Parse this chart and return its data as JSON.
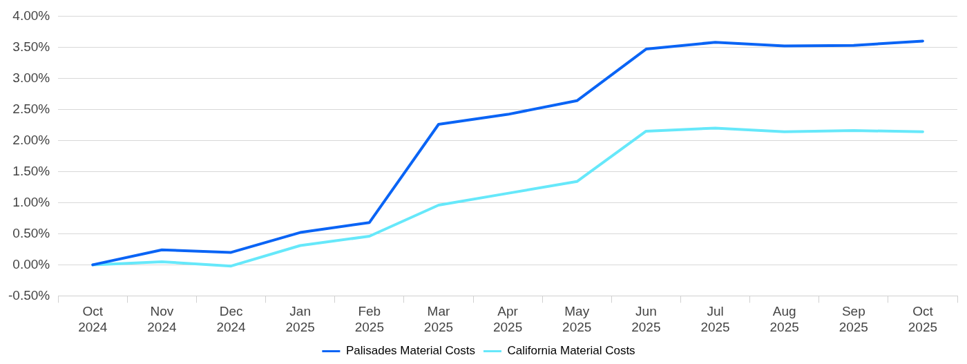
{
  "chart_data": {
    "type": "line",
    "categories": [
      "Oct 2024",
      "Nov 2024",
      "Dec 2024",
      "Jan 2025",
      "Feb 2025",
      "Mar 2025",
      "Apr 2025",
      "May 2025",
      "Jun 2025",
      "Jul 2025",
      "Aug 2025",
      "Sep 2025",
      "Oct 2025"
    ],
    "series": [
      {
        "name": "Palisades Material Costs",
        "color": "#0a64f5",
        "values": [
          0,
          0.24,
          0.2,
          0.52,
          0.68,
          2.26,
          2.42,
          2.64,
          3.47,
          3.58,
          3.52,
          3.53,
          3.6
        ]
      },
      {
        "name": "California Material Costs",
        "color": "#66e8fa",
        "values": [
          0,
          0.05,
          -0.02,
          0.31,
          0.46,
          0.96,
          1.15,
          1.34,
          2.15,
          2.2,
          2.14,
          2.16,
          2.14
        ]
      }
    ],
    "ylim": [
      -0.5,
      4
    ],
    "yticks": [
      {
        "value": -0.5,
        "label": "-0.50%"
      },
      {
        "value": 0,
        "label": "0.00%"
      },
      {
        "value": 0.5,
        "label": "0.50%"
      },
      {
        "value": 1,
        "label": "1.00%"
      },
      {
        "value": 1.5,
        "label": "1.50%"
      },
      {
        "value": 2,
        "label": "2.00%"
      },
      {
        "value": 2.5,
        "label": "2.50%"
      },
      {
        "value": 3,
        "label": "3.00%"
      },
      {
        "value": 3.5,
        "label": "3.50%"
      },
      {
        "value": 4,
        "label": "4.00%"
      }
    ],
    "grid": "y",
    "legend": "bottom",
    "marker": "none",
    "line_style": "solid"
  }
}
